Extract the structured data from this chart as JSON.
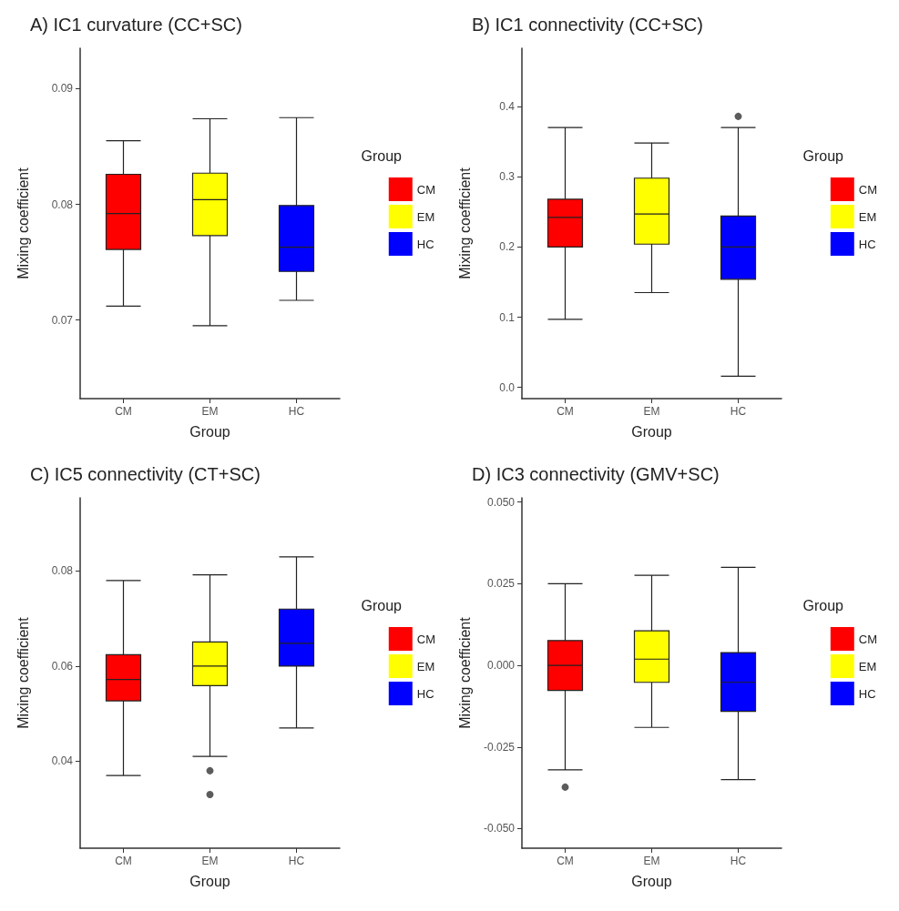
{
  "chart_data": [
    {
      "type": "box",
      "title": "A) IC1 curvature (CC+SC)",
      "xlabel": "Group",
      "ylabel": "Mixing coefficient",
      "legend_title": "Group",
      "legend": "right",
      "grid": false,
      "categories": [
        "CM",
        "EM",
        "HC"
      ],
      "ylim": [
        0.0632,
        0.0935
      ],
      "yticks": [
        0.07,
        0.08,
        0.09
      ],
      "series": [
        {
          "name": "CM",
          "color": "#ff0000",
          "boxes": [
            {
              "low": 0.0712,
              "q1": 0.0761,
              "median": 0.0792,
              "q3": 0.0826,
              "high": 0.0855
            },
            null,
            null
          ]
        },
        {
          "name": "EM",
          "color": "#ffff00",
          "boxes": [
            null,
            {
              "low": 0.0695,
              "q1": 0.0773,
              "median": 0.0804,
              "q3": 0.0827,
              "high": 0.0874
            },
            null
          ]
        },
        {
          "name": "HC",
          "color": "#0000ff",
          "boxes": [
            null,
            null,
            {
              "low": 0.0717,
              "q1": 0.0742,
              "median": 0.0763,
              "q3": 0.0799,
              "high": 0.0875
            }
          ]
        }
      ]
    },
    {
      "type": "box",
      "title": "B) IC1 connectivity (CC+SC)",
      "xlabel": "Group",
      "ylabel": "Mixing coefficient",
      "legend_title": "Group",
      "legend": "right",
      "grid": false,
      "categories": [
        "CM",
        "EM",
        "HC"
      ],
      "ylim": [
        -0.016,
        0.483
      ],
      "yticks": [
        {
          "value": 0,
          "label": "0.0"
        },
        0.1,
        0.2,
        0.3,
        0.4
      ],
      "series": [
        {
          "name": "CM",
          "color": "#ff0000",
          "boxes": [
            {
              "low": 0.097,
              "q1": 0.2,
              "median": 0.242,
              "q3": 0.268,
              "high": 0.37
            },
            null,
            null
          ]
        },
        {
          "name": "EM",
          "color": "#ffff00",
          "boxes": [
            null,
            {
              "low": 0.135,
              "q1": 0.204,
              "median": 0.247,
              "q3": 0.298,
              "high": 0.348
            },
            null
          ]
        },
        {
          "name": "HC",
          "color": "#0000ff",
          "boxes": [
            null,
            null,
            {
              "low": 0.016,
              "q1": 0.154,
              "median": 0.2,
              "q3": 0.244,
              "high": 0.37,
              "outliers": [
                0.386
              ]
            }
          ]
        }
      ]
    },
    {
      "type": "box",
      "title": "C) IC5 connectivity (CT+SC)",
      "xlabel": "Group",
      "ylabel": "Mixing coefficient",
      "legend_title": "Group",
      "legend": "right",
      "grid": false,
      "categories": [
        "CM",
        "EM",
        "HC"
      ],
      "ylim": [
        0.0217,
        0.0954
      ],
      "yticks": [
        0.04,
        0.06,
        0.08
      ],
      "series": [
        {
          "name": "CM",
          "color": "#ff0000",
          "boxes": [
            {
              "low": 0.037,
              "q1": 0.0527,
              "median": 0.0572,
              "q3": 0.0624,
              "high": 0.078
            },
            null,
            null
          ]
        },
        {
          "name": "EM",
          "color": "#ffff00",
          "boxes": [
            null,
            {
              "low": 0.041,
              "q1": 0.0559,
              "median": 0.06,
              "q3": 0.0651,
              "high": 0.0792,
              "outliers": [
                0.038,
                0.033
              ]
            },
            null
          ]
        },
        {
          "name": "HC",
          "color": "#0000ff",
          "boxes": [
            null,
            null,
            {
              "low": 0.047,
              "q1": 0.06,
              "median": 0.0648,
              "q3": 0.072,
              "high": 0.083
            }
          ]
        }
      ]
    },
    {
      "type": "box",
      "title": "D) IC3 connectivity (GMV+SC)",
      "xlabel": "Group",
      "ylabel": "Mixing coefficient",
      "legend_title": "Group",
      "legend": "right",
      "grid": false,
      "categories": [
        "CM",
        "EM",
        "HC"
      ],
      "ylim": [
        -0.056,
        0.0513
      ],
      "yticks": [
        {
          "value": -0.05,
          "label": "-0.050"
        },
        {
          "value": -0.025,
          "label": "-0.025"
        },
        {
          "value": 0,
          "label": "0.000"
        },
        {
          "value": 0.025,
          "label": "0.025"
        },
        {
          "value": 0.05,
          "label": "0.050"
        }
      ],
      "series": [
        {
          "name": "CM",
          "color": "#ff0000",
          "boxes": [
            {
              "low": -0.032,
              "q1": -0.0077,
              "median": 0,
              "q3": 0.0076,
              "high": 0.025,
              "outliers": [
                -0.0373
              ]
            },
            null,
            null
          ]
        },
        {
          "name": "EM",
          "color": "#ffff00",
          "boxes": [
            null,
            {
              "low": -0.019,
              "q1": -0.0052,
              "median": 0.0019,
              "q3": 0.0106,
              "high": 0.0276
            },
            null
          ]
        },
        {
          "name": "HC",
          "color": "#0000ff",
          "boxes": [
            null,
            null,
            {
              "low": -0.035,
              "q1": -0.0141,
              "median": -0.0052,
              "q3": 0.0039,
              "high": 0.03
            }
          ]
        }
      ]
    }
  ]
}
